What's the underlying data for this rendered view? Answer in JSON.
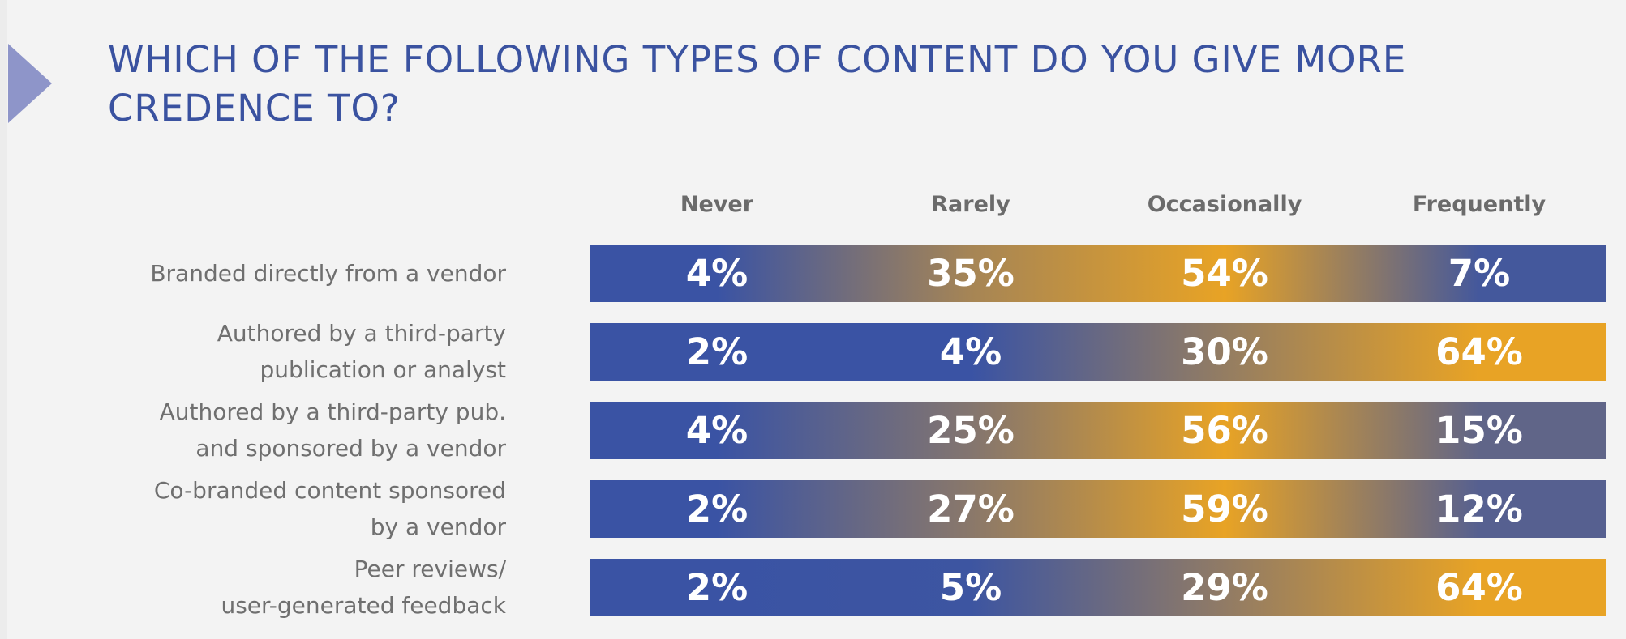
{
  "title": "WHICH OF THE FOLLOWING TYPES OF CONTENT DO YOU GIVE MORE CREDENCE TO?",
  "colors": {
    "low": "#3a53a4",
    "high": "#e8a325",
    "title": "#3a52a0",
    "arrow": "#8e95c9"
  },
  "chart_data": {
    "type": "table",
    "title": "WHICH OF THE FOLLOWING TYPES OF CONTENT DO YOU GIVE MORE CREDENCE TO?",
    "columns": [
      "Never",
      "Rarely",
      "Occasionally",
      "Frequently"
    ],
    "rows": [
      {
        "label": [
          "Branded directly from a vendor"
        ],
        "values": [
          4,
          35,
          54,
          7
        ],
        "display": [
          "4%",
          "35%",
          "54%",
          "7%"
        ]
      },
      {
        "label": [
          "Authored by a third-party",
          "publication or analyst"
        ],
        "values": [
          2,
          4,
          30,
          64
        ],
        "display": [
          "2%",
          "4%",
          "30%",
          "64%"
        ]
      },
      {
        "label": [
          "Authored by a third-party pub.",
          "and sponsored by a vendor"
        ],
        "values": [
          4,
          25,
          56,
          15
        ],
        "display": [
          "4%",
          "25%",
          "56%",
          "15%"
        ]
      },
      {
        "label": [
          "Co-branded content sponsored",
          "by a vendor"
        ],
        "values": [
          2,
          27,
          59,
          12
        ],
        "display": [
          "2%",
          "27%",
          "59%",
          "12%"
        ]
      },
      {
        "label": [
          "Peer reviews/",
          "user-generated feedback"
        ],
        "values": [
          2,
          5,
          29,
          64
        ],
        "display": [
          "2%",
          "5%",
          "29%",
          "64%"
        ]
      }
    ],
    "unit": "%"
  }
}
